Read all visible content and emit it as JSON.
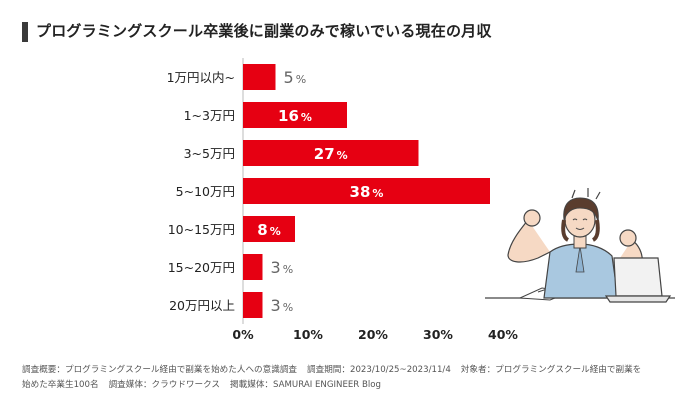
{
  "title": "プログラミングスクール卒業後に副業のみで稼いでいる現在の月収",
  "chart_data": {
    "type": "bar",
    "orientation": "horizontal",
    "title": "プログラミングスクール卒業後に副業のみで稼いでいる現在の月収",
    "categories": [
      "1万円以内~",
      "1~3万円",
      "3~5万円",
      "5~10万円",
      "10~15万円",
      "15~20万円",
      "20万円以上"
    ],
    "values": [
      5,
      16,
      27,
      38,
      8,
      3,
      3
    ],
    "value_suffix": "%",
    "xlim": [
      0,
      40
    ],
    "xticks": [
      "0%",
      "10%",
      "20%",
      "30%",
      "40%"
    ],
    "bar_color": "#e60012",
    "label_inside_color": "#ffffff",
    "label_outside_color": "#666666"
  },
  "footer": {
    "summary": "調査概要：プログラミングスクール経由で副業を始めた人への意識調査",
    "period": "調査期間：2023/10/25~2023/11/4",
    "target_line1": "対象者：プログラミングスクール経由で副業を",
    "target_line2": "始めた卒業生100名",
    "medium": "調査媒体：クラウドワークス",
    "published": "掲載媒体：SAMURAI ENGINEER Blog"
  }
}
